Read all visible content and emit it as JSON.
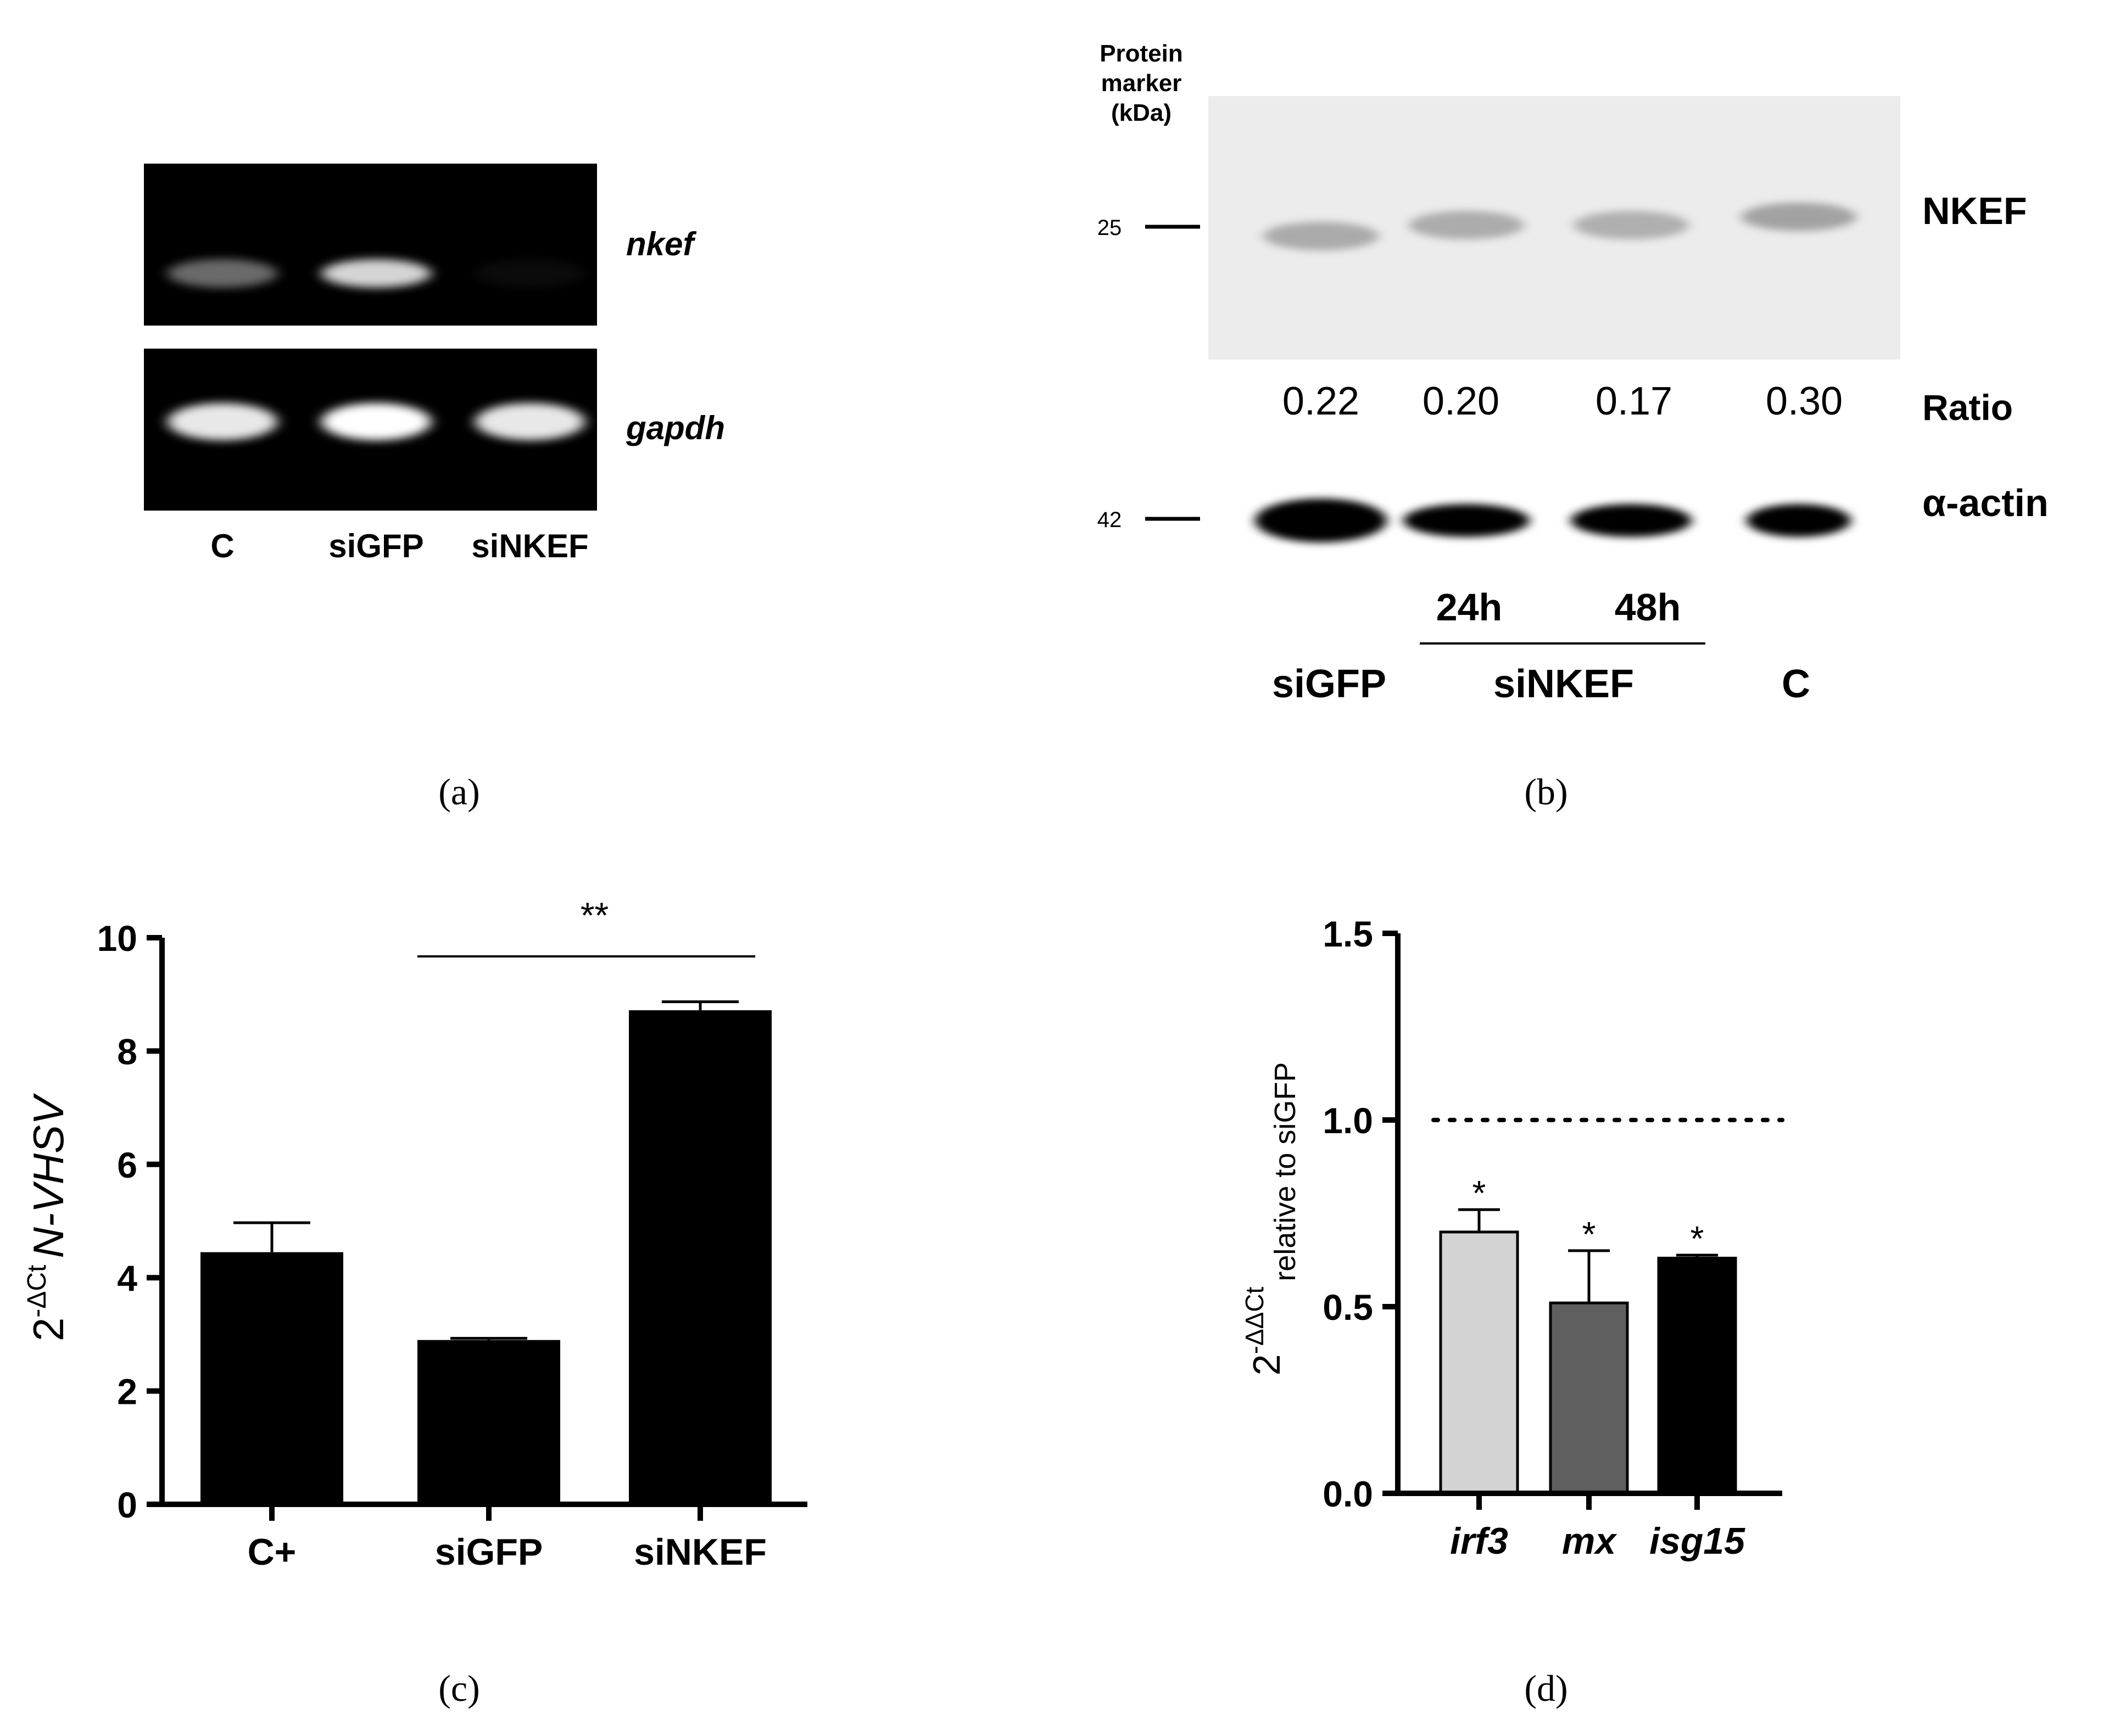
{
  "panel_letters": {
    "a": "(a)",
    "b": "(b)",
    "c": "(c)",
    "d": "(d)"
  },
  "chart_data": [
    {
      "panel": "a",
      "type": "table",
      "description_kind": "agarose gel RT-PCR",
      "row_labels": [
        "nkef",
        "gapdh"
      ],
      "lanes": [
        "C",
        "siGFP",
        "siNKEF"
      ],
      "band_intensity": {
        "nkef": [
          0.6,
          0.9,
          0.08
        ],
        "gapdh": [
          0.95,
          1.0,
          0.95
        ]
      }
    },
    {
      "panel": "b",
      "type": "table",
      "description_kind": "western blot",
      "marker_header": [
        "Protein",
        "marker",
        "(kDa)"
      ],
      "marker_values": [
        "25",
        "42"
      ],
      "protein_labels": [
        "NKEF",
        "α-actin"
      ],
      "ratio_label": "Ratio",
      "ratios": [
        "0.22",
        "0.20",
        "0.17",
        "0.30"
      ],
      "time_labels": [
        "24h",
        "48h"
      ],
      "group_labels": [
        "siGFP",
        "siNKEF",
        "C"
      ]
    },
    {
      "panel": "c",
      "type": "bar",
      "categories": [
        "C+",
        "siGFP",
        "siNKEF"
      ],
      "values": [
        4.45,
        2.9,
        8.72
      ],
      "errors": [
        0.52,
        0.03,
        0.15
      ],
      "ylabel_base": "2",
      "ylabel_exp": "-ΔCt",
      "ylabel_gene": "N-VHSV",
      "ylim": [
        0,
        10
      ],
      "yticks": [
        "0",
        "2",
        "4",
        "6",
        "8",
        "10"
      ],
      "significance": {
        "from": 1,
        "to": 2,
        "label": "**"
      },
      "bar_color": "#000000"
    },
    {
      "panel": "d",
      "type": "bar",
      "categories": [
        "irf3",
        "mx",
        "isg15"
      ],
      "values": [
        0.7,
        0.51,
        0.63
      ],
      "errors": [
        0.06,
        0.14,
        0.008
      ],
      "ylabel_base": "2",
      "ylabel_exp": "-ΔΔCt",
      "ylabel_sub": "relative to siGFP",
      "ylim": [
        0,
        1.5
      ],
      "yticks": [
        "0.0",
        "0.5",
        "1.0",
        "1.5"
      ],
      "reference_line": 1.0,
      "stars": [
        "*",
        "*",
        "*"
      ],
      "bar_colors": [
        "#d3d3d3",
        "#5f5f5f",
        "#000000"
      ]
    }
  ]
}
